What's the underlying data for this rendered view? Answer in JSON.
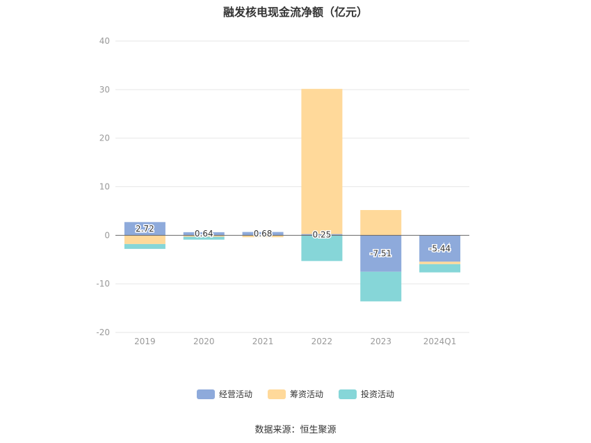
{
  "chart_data": {
    "type": "bar",
    "title": "融发核电现金流净额（亿元）",
    "categories": [
      "2019",
      "2020",
      "2021",
      "2022",
      "2023",
      "2024Q1"
    ],
    "stacked": true,
    "ylim": [
      -20,
      40
    ],
    "yticks": [
      40,
      30,
      20,
      10,
      0,
      -10,
      -20
    ],
    "grid": true,
    "legend_position": "bottom",
    "series": [
      {
        "name": "经营活动",
        "color": "#8eaadb",
        "values": [
          2.72,
          0.64,
          0.68,
          0.25,
          -7.51,
          -5.44
        ]
      },
      {
        "name": "筹资活动",
        "color": "#ffd99a",
        "values": [
          -1.8,
          -0.3,
          -0.4,
          29.9,
          5.2,
          -0.5
        ]
      },
      {
        "name": "投资活动",
        "color": "#86d6d8",
        "values": [
          -1.0,
          -0.6,
          0.0,
          -5.3,
          -6.1,
          -1.7
        ]
      }
    ],
    "data_labels": [
      "2.72",
      "0.64",
      "0.68",
      "0.25",
      "-7.51",
      "-5.44"
    ]
  },
  "source": "数据来源：恒生聚源"
}
